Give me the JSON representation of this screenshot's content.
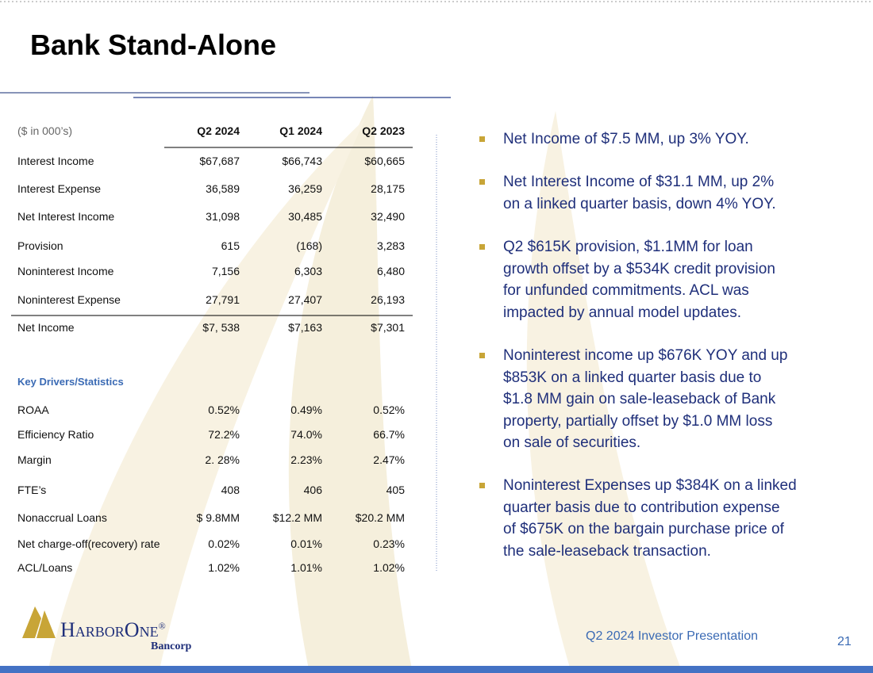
{
  "header": {
    "title": "Bank Stand-Alone"
  },
  "table": {
    "columns": [
      "($ in 000’s)",
      "Q2 2024",
      "Q1 2024",
      "Q2 2023"
    ],
    "rows": [
      [
        "Interest Income",
        "$67,687",
        "$66,743",
        "$60,665"
      ],
      [
        "Interest Expense",
        "36,589",
        "36,259",
        "28,175"
      ],
      [
        "Net Interest Income",
        "31,098",
        "30,485",
        "32,490"
      ],
      [
        "Provision",
        "615",
        "(168)",
        "3,283"
      ],
      [
        "Noninterest Income",
        "7,156",
        "6,303",
        "6,480"
      ],
      [
        "Noninterest Expense",
        "27,791",
        "27,407",
        "26,193"
      ],
      [
        "Net Income",
        "$7, 538",
        "$7,163",
        "$7,301"
      ]
    ]
  },
  "drivers": {
    "title": "Key Drivers/Statistics",
    "rows": [
      [
        "ROAA",
        "0.52%",
        "0.49%",
        "0.52%"
      ],
      [
        "Efficiency Ratio",
        "72.2%",
        "74.0%",
        "66.7%"
      ],
      [
        "Margin",
        "2. 28%",
        "2.23%",
        "2.47%"
      ],
      [
        "FTE’s",
        "408",
        "406",
        "405"
      ],
      [
        "Nonaccrual Loans",
        "$ 9.8MM",
        "$12.2 MM",
        "$20.2 MM"
      ],
      [
        "Net charge-off(recovery) rate",
        "0.02%",
        "0.01%",
        "0.23%"
      ],
      [
        "ACL/Loans",
        "1.02%",
        "1.01%",
        "1.02%"
      ]
    ]
  },
  "bullets": [
    [
      "Net Income of $7.5 MM, up 3% YOY."
    ],
    [
      "Net Interest Income of $31.1 MM, up 2%",
      "on a linked quarter basis, down 4% YOY."
    ],
    [
      "Q2 $615K provision, $1.1MM for loan",
      "growth offset by a $534K credit provision",
      "for unfunded commitments. ACL was",
      "impacted by annual model updates."
    ],
    [
      "Noninterest income up $676K YOY and up",
      "$853K on a linked quarter basis due to",
      "$1.8 MM gain on sale-leaseback of  Bank",
      "property, partially offset by $1.0 MM loss",
      "on sale of securities."
    ],
    [
      "Noninterest Expenses up $384K on a linked",
      "quarter basis due to contribution expense",
      "of $675K on the bargain purchase price of",
      "the sale-leaseback transaction."
    ]
  ],
  "logo": {
    "name": "HarborOne",
    "mark": "®",
    "sub": "Bancorp"
  },
  "footer": {
    "text": "Q2 2024 Investor Presentation",
    "page": "21"
  }
}
